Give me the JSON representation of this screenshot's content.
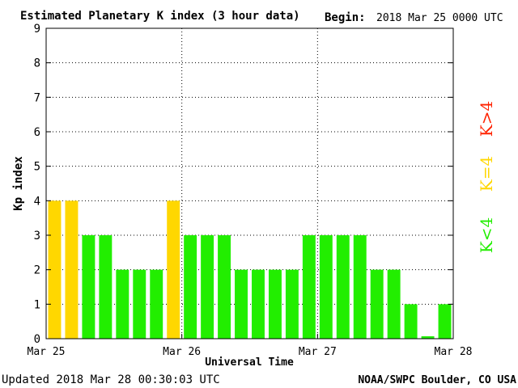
{
  "chart_data": {
    "type": "bar",
    "title": "Estimated Planetary K index (3 hour data)",
    "begin_label": "Begin:",
    "begin_value": "2018 Mar 25 0000 UTC",
    "ylabel": "Kp index",
    "xlabel": "Universal Time",
    "ylim": [
      0,
      9
    ],
    "y_ticks": [
      0,
      1,
      2,
      3,
      4,
      5,
      6,
      7,
      8,
      9
    ],
    "x_tick_labels": [
      "Mar 25",
      "Mar 26",
      "Mar 27",
      "Mar 28"
    ],
    "grid": true,
    "bar_count": 24,
    "values": [
      4,
      4,
      3,
      3,
      2,
      2,
      2,
      4,
      3,
      3,
      3,
      2,
      2,
      2,
      2,
      3,
      3,
      3,
      3,
      2,
      2,
      1,
      0.07,
      1
    ],
    "colors": {
      "below_4": "#22ee00",
      "equal_4": "#ffd700",
      "above_4": "#ff2200"
    },
    "legend": [
      {
        "label": "K>4",
        "color": "#ff2200"
      },
      {
        "label": "K=4",
        "color": "#ffd700"
      },
      {
        "label": "K<4",
        "color": "#22ee00"
      }
    ]
  },
  "footer": {
    "updated": "Updated 2018 Mar 28 00:30:03 UTC",
    "credit": "NOAA/SWPC Boulder, CO USA"
  }
}
